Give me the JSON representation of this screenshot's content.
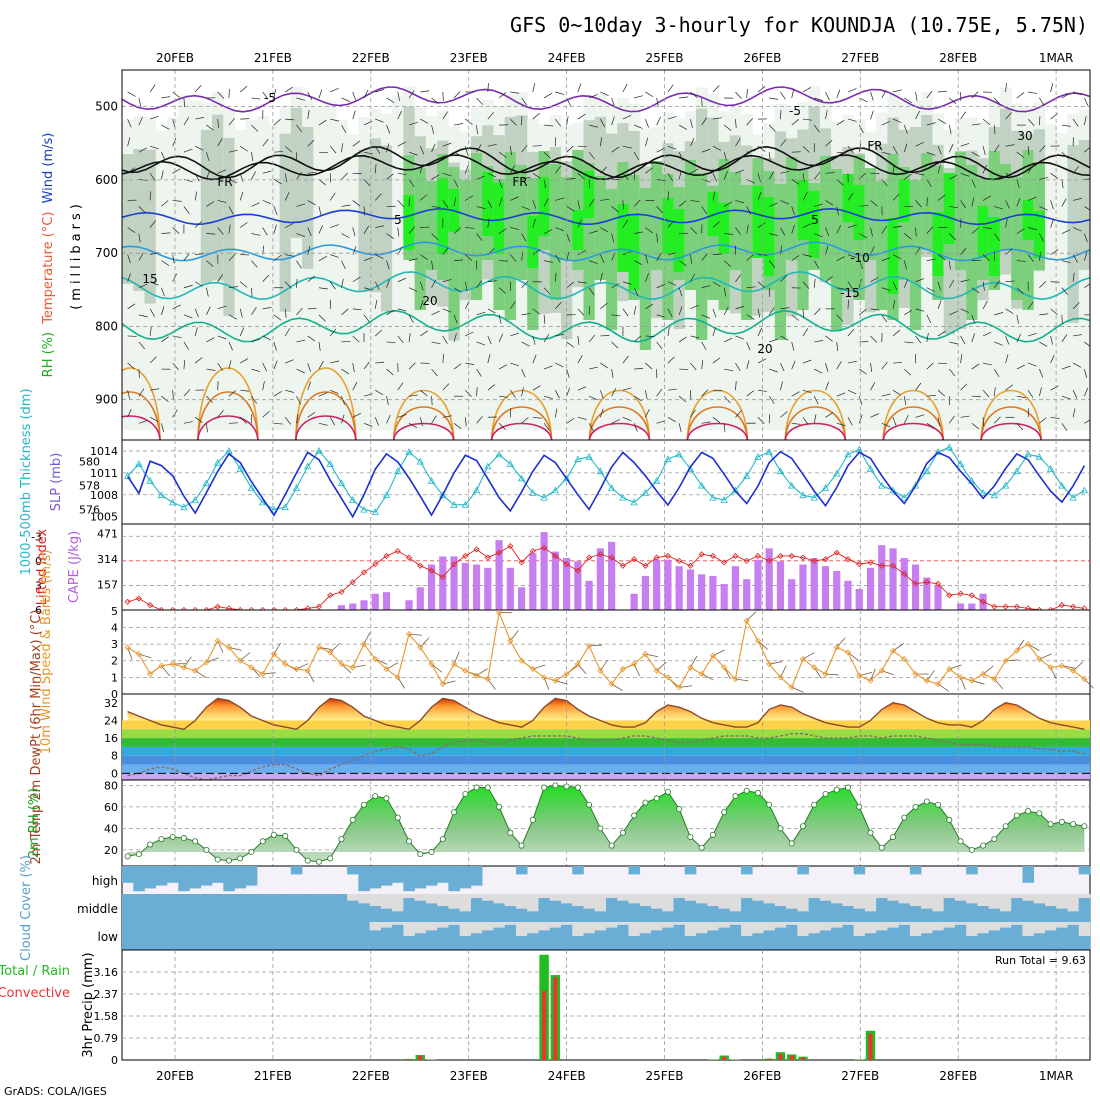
{
  "title": "GFS 0~10day 3-hourly for KOUNDJA (10.75E, 5.75N)",
  "footer": "GrADS: COLA/IGES",
  "date_ticks": [
    "20FEB",
    "21FEB",
    "22FEB",
    "23FEB",
    "24FEB",
    "25FEB",
    "26FEB",
    "27FEB",
    "28FEB",
    "1MAR"
  ],
  "colors": {
    "grid": "#999999",
    "green_bright": "#00ee00",
    "green_mid": "#66cc66",
    "gray_dark": "#7f8f7f",
    "rh_pale": "#e8f2e8",
    "cloud": "#6aaed6",
    "precip_total": "#22bb22",
    "precip_conv": "#ee3333",
    "cape": "#c77ef0",
    "li": "#dd2222"
  },
  "chart_data": [
    {
      "type": "heatmap",
      "name": "upper",
      "ylabel_parts": [
        "RH (%)",
        "Temperature (°C)",
        "Wind (m/s)"
      ],
      "axis_label": "(millibars)",
      "y_ticks": [
        "500",
        "600",
        "700",
        "800",
        "900"
      ],
      "temp_contour_labels": [
        "-5",
        "-5",
        "FR",
        "FR",
        "FR",
        "5",
        "5",
        "-10",
        "15",
        "20",
        "-15",
        "20",
        "30"
      ]
    },
    {
      "type": "line",
      "name": "thickness-slp",
      "labels": {
        "thickness": "1000-500mb Thickness (dm)",
        "slp": "SLP (mb)"
      },
      "left_ticks": [
        "580",
        "578",
        "576"
      ],
      "right_ticks": [
        "1014",
        "1011",
        "1008",
        "1005"
      ],
      "series": [
        {
          "name": "SLP (mb)",
          "color": "#1a2fd0",
          "values": [
            1010.5,
            1008.2,
            1012.6,
            1012.0,
            1010.6,
            1007.8,
            1005.5,
            1008.3,
            1011.2,
            1013.6,
            1012.4,
            1009.8,
            1007.5,
            1005.2,
            1008.0,
            1011.0,
            1013.8,
            1012.8,
            1010.0,
            1007.5,
            1005.0,
            1008.0,
            1011.5,
            1013.6,
            1012.5,
            1010.3,
            1007.8,
            1005.2,
            1008.0,
            1011.0,
            1013.4,
            1012.7,
            1010.2,
            1007.6,
            1005.8,
            1008.4,
            1011.2,
            1013.4,
            1012.4,
            1010.2,
            1008.0,
            1006.0,
            1008.8,
            1011.8,
            1013.8,
            1012.4,
            1010.6,
            1008.5,
            1006.6,
            1009.0,
            1011.8,
            1013.8,
            1013.0,
            1010.8,
            1008.5,
            1006.8,
            1009.2,
            1012.4,
            1013.9,
            1013.0,
            1010.8,
            1008.5,
            1006.5,
            1009.0,
            1012.0,
            1013.8,
            1013.0,
            1010.6,
            1008.5,
            1006.8,
            1009.2,
            1012.3,
            1013.8,
            1013.1,
            1011.2,
            1009.5,
            1007.5,
            1009.2,
            1011.6,
            1013.6,
            1012.8,
            1010.6,
            1008.5,
            1007.0,
            1009.2,
            1012.0
          ]
        },
        {
          "name": "1000-500mb Thickness (dm)",
          "color": "#22b8c8",
          "values": [
            578.8,
            579.8,
            578.4,
            577.2,
            576.6,
            576.2,
            576.8,
            578.2,
            579.9,
            580.9,
            579.4,
            577.8,
            576.6,
            576.0,
            576.2,
            577.8,
            579.6,
            580.9,
            579.8,
            578.2,
            576.8,
            576.0,
            575.8,
            577.2,
            579.2,
            580.8,
            580.0,
            578.4,
            577.2,
            576.4,
            576.4,
            577.6,
            579.6,
            580.6,
            579.8,
            578.6,
            577.4,
            577.0,
            577.6,
            578.6,
            580.2,
            580.4,
            579.2,
            577.8,
            577.0,
            576.6,
            577.4,
            578.4,
            580.2,
            580.6,
            579.4,
            578.0,
            577.0,
            576.8,
            577.6,
            578.8,
            580.4,
            580.8,
            579.2,
            578.0,
            577.2,
            577.0,
            577.8,
            579.0,
            580.6,
            581.0,
            579.4,
            578.0,
            577.6,
            577.0,
            578.0,
            579.2,
            580.8,
            581.2,
            579.8,
            578.4,
            577.4,
            577.2,
            578.0,
            579.2,
            580.6,
            580.4,
            579.4,
            578.0,
            577.0,
            577.6
          ]
        }
      ]
    },
    {
      "type": "bar",
      "name": "cape-li",
      "labels": {
        "li": "Lifted Index",
        "cape": "CAPE (J/kg)"
      },
      "left_ticks": [
        "-3",
        "0",
        "3",
        "6"
      ],
      "right_ticks": [
        "471",
        "314",
        "157"
      ],
      "cape_values": [
        0,
        0,
        0,
        0,
        0,
        0,
        0,
        0,
        0,
        0,
        0,
        0,
        0,
        0,
        0,
        0,
        0,
        0,
        0,
        30,
        40,
        60,
        100,
        110,
        0,
        60,
        140,
        280,
        330,
        330,
        290,
        280,
        260,
        430,
        260,
        140,
        350,
        480,
        360,
        320,
        300,
        180,
        380,
        420,
        0,
        100,
        210,
        310,
        310,
        270,
        250,
        220,
        210,
        160,
        270,
        190,
        310,
        380,
        300,
        190,
        280,
        320,
        270,
        240,
        180,
        130,
        260,
        400,
        380,
        320,
        280,
        200,
        150,
        0,
        40,
        40,
        100,
        0,
        0,
        0,
        0,
        0,
        0,
        0,
        0,
        0
      ],
      "li_values": [
        5,
        4.6,
        5.4,
        6,
        6,
        6,
        6,
        6,
        5.6,
        5.8,
        6,
        6,
        6,
        6,
        6,
        6,
        5.8,
        5.6,
        4.2,
        3.8,
        2.6,
        1.4,
        0.4,
        -0.6,
        -1.2,
        -0.4,
        0.6,
        1.2,
        2.0,
        0.4,
        -0.6,
        -1.4,
        -0.4,
        -1.0,
        -1.8,
        0.2,
        -1.2,
        -1.6,
        -0.6,
        0.4,
        1.2,
        -0.4,
        -0.8,
        -0.4,
        0.6,
        -0.2,
        0.6,
        -0.4,
        -0.6,
        0.0,
        0.6,
        -0.8,
        -0.6,
        0.2,
        -0.6,
        0.0,
        -0.6,
        0.0,
        -0.6,
        -0.6,
        -0.4,
        0.0,
        -0.2,
        -1.0,
        -0.2,
        0.4,
        0.2,
        0.6,
        0.6,
        1.6,
        2.8,
        2.6,
        2.8,
        4.2,
        4.0,
        4.2,
        5.0,
        5.6,
        5.6,
        5.6,
        5.8,
        6,
        6,
        5.4,
        5.6,
        5.8
      ]
    },
    {
      "type": "line",
      "name": "wind10m",
      "label": "10m Wind Speed & Barbs (m/s)",
      "y_ticks": [
        "5",
        "4",
        "3",
        "2",
        "1",
        "0"
      ],
      "series": [
        {
          "name": "10m Wind Speed",
          "color": "#e8962a",
          "values": [
            2.8,
            2.4,
            1.2,
            1.7,
            1.8,
            1.6,
            1.4,
            1.9,
            3.2,
            2.8,
            2.0,
            1.6,
            1.2,
            2.4,
            1.8,
            1.5,
            1.4,
            2.8,
            2.5,
            1.8,
            1.6,
            3.0,
            2.1,
            1.5,
            1.0,
            3.6,
            2.8,
            1.8,
            0.6,
            1.8,
            1.4,
            1.1,
            0.9,
            4.9,
            3.2,
            2.0,
            1.5,
            1.0,
            0.8,
            1.2,
            1.8,
            2.9,
            1.4,
            0.6,
            1.5,
            1.8,
            2.4,
            1.4,
            1.0,
            0.4,
            1.6,
            1.2,
            2.3,
            1.6,
            0.9,
            4.4,
            3.2,
            1.8,
            1.0,
            0.4,
            2.1,
            1.6,
            1.2,
            2.8,
            2.5,
            1.1,
            0.8,
            1.4,
            2.6,
            2.1,
            1.2,
            0.8,
            0.6,
            1.5,
            1.0,
            0.8,
            1.2,
            0.9,
            2.0,
            2.6,
            3.0,
            2.1,
            1.6,
            1.7,
            1.4,
            0.9
          ]
        }
      ]
    },
    {
      "type": "area",
      "name": "temp2m",
      "label": "2m Temp 2m DewPt (6hr Min/Max) (°C)",
      "y_ticks": [
        "32",
        "24",
        "16",
        "8",
        "0"
      ],
      "series": [
        {
          "name": "2m Temp",
          "color": "#8a4a2a",
          "values": [
            28,
            26,
            24,
            22,
            21,
            20,
            24,
            30,
            34,
            33,
            30,
            26,
            24,
            22,
            21,
            20,
            24,
            30,
            34,
            33,
            30,
            26,
            24,
            22,
            21,
            20,
            24,
            30,
            34,
            33,
            30,
            27,
            25,
            23,
            22,
            21,
            24,
            30,
            34,
            33,
            29,
            26,
            24,
            22,
            21,
            21,
            23,
            28,
            31,
            30,
            28,
            25,
            23,
            22,
            21,
            21,
            23,
            29,
            31,
            30,
            27,
            25,
            23,
            22,
            21,
            21,
            24,
            29,
            32,
            31,
            28,
            25,
            23,
            22,
            22,
            21,
            24,
            29,
            32,
            31,
            28,
            25,
            23,
            22,
            21,
            20
          ]
        },
        {
          "name": "2m DewPt",
          "color": "#8a4a2a",
          "values": [
            -1,
            0,
            2,
            3,
            2,
            0,
            -2,
            -3,
            -2,
            -1,
            -1,
            1,
            3,
            4,
            4,
            2,
            0,
            -1,
            2,
            4,
            6,
            8,
            10,
            11,
            12,
            11,
            8,
            9,
            12,
            14,
            15,
            15,
            14,
            13,
            15,
            16,
            17,
            17,
            17,
            17,
            16,
            15,
            15,
            15,
            16,
            17,
            17,
            16,
            15,
            14,
            14,
            15,
            16,
            17,
            17,
            17,
            16,
            16,
            17,
            18,
            18,
            17,
            16,
            16,
            16,
            17,
            17,
            16,
            17,
            17,
            17,
            16,
            15,
            14,
            13,
            13,
            13,
            12,
            12,
            12,
            12,
            11,
            11,
            10,
            10,
            9
          ]
        }
      ]
    },
    {
      "type": "area",
      "name": "rh2m",
      "label": "2m RH (%)",
      "y_ticks": [
        "80",
        "60",
        "40",
        "20"
      ],
      "series": [
        {
          "name": "2m RH",
          "color": "#1aa01a",
          "values": [
            14,
            16,
            25,
            30,
            32,
            31,
            28,
            20,
            11,
            10,
            12,
            18,
            28,
            34,
            33,
            20,
            10,
            9,
            12,
            30,
            48,
            62,
            70,
            68,
            50,
            28,
            16,
            18,
            30,
            55,
            72,
            78,
            78,
            60,
            36,
            24,
            48,
            78,
            80,
            79,
            78,
            62,
            40,
            24,
            36,
            52,
            64,
            68,
            74,
            58,
            32,
            22,
            34,
            55,
            70,
            75,
            73,
            62,
            40,
            26,
            42,
            62,
            72,
            76,
            78,
            60,
            36,
            22,
            32,
            50,
            60,
            65,
            62,
            48,
            28,
            20,
            24,
            30,
            42,
            52,
            56,
            54,
            44,
            46,
            44,
            42
          ]
        }
      ]
    },
    {
      "type": "heatmap",
      "name": "cloud",
      "label": "Cloud Cover (%)",
      "rows": [
        "high",
        "middle",
        "low"
      ]
    },
    {
      "type": "bar",
      "name": "precip",
      "labels": {
        "total": "Total / Rain",
        "conv": "Convective",
        "ylabel": "3hr Precip (mm)"
      },
      "run_total": "Run Total = 9.63",
      "y_ticks": [
        "3.16",
        "2.37",
        "1.58",
        "0.79",
        "0"
      ],
      "total_values": [
        0,
        0,
        0,
        0,
        0,
        0,
        0,
        0,
        0,
        0,
        0,
        0,
        0,
        0,
        0,
        0,
        0,
        0,
        0,
        0,
        0,
        0,
        0,
        0,
        0,
        0.04,
        0.18,
        0.02,
        0,
        0,
        0,
        0,
        0,
        0,
        0,
        0,
        0,
        3.78,
        3.05,
        0,
        0,
        0,
        0,
        0,
        0,
        0,
        0,
        0,
        0,
        0,
        0,
        0,
        0.02,
        0.16,
        0.02,
        0,
        0,
        0.05,
        0.28,
        0.2,
        0.12,
        0,
        0,
        0,
        0,
        0.02,
        1.05,
        0,
        0,
        0,
        0,
        0,
        0,
        0,
        0,
        0,
        0,
        0,
        0,
        0,
        0,
        0,
        0,
        0,
        0,
        0
      ],
      "conv_values": [
        0,
        0,
        0,
        0,
        0,
        0,
        0,
        0,
        0,
        0,
        0,
        0,
        0,
        0,
        0,
        0,
        0,
        0,
        0,
        0,
        0,
        0,
        0,
        0,
        0,
        0.03,
        0.15,
        0.01,
        0,
        0,
        0,
        0,
        0,
        0,
        0,
        0,
        0,
        2.48,
        2.98,
        0,
        0,
        0,
        0,
        0,
        0,
        0,
        0,
        0,
        0,
        0,
        0,
        0,
        0.01,
        0.12,
        0.01,
        0,
        0,
        0.04,
        0.22,
        0.16,
        0.1,
        0,
        0,
        0,
        0,
        0.01,
        0.95,
        0,
        0,
        0,
        0,
        0,
        0,
        0,
        0,
        0,
        0,
        0,
        0,
        0,
        0,
        0,
        0,
        0,
        0,
        0
      ]
    }
  ]
}
